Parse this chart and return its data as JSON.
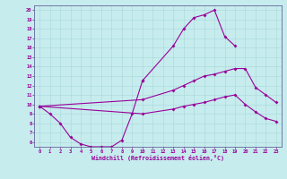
{
  "bg_color": "#c6ecee",
  "line_color": "#990099",
  "grid_color": "#a8d8da",
  "xlabel": "Windchill (Refroidissement éolien,°C)",
  "xmin": -0.5,
  "xmax": 23.5,
  "ymin": 5.5,
  "ymax": 20.5,
  "yticks": [
    6,
    7,
    8,
    9,
    10,
    11,
    12,
    13,
    14,
    15,
    16,
    17,
    18,
    19,
    20
  ],
  "xticks": [
    0,
    1,
    2,
    3,
    4,
    5,
    6,
    7,
    8,
    9,
    10,
    11,
    12,
    13,
    14,
    15,
    16,
    17,
    18,
    19,
    20,
    21,
    22,
    23
  ],
  "curves": [
    {
      "x": [
        0,
        1,
        2,
        3,
        4,
        5,
        6,
        7,
        8,
        9,
        10
      ],
      "y": [
        9.8,
        9.0,
        8.0,
        6.5,
        5.8,
        5.5,
        5.5,
        5.5,
        6.2,
        9.0,
        12.5
      ]
    },
    {
      "x": [
        10,
        13,
        14,
        15,
        16,
        17,
        18,
        19
      ],
      "y": [
        12.5,
        16.2,
        18.0,
        19.2,
        19.5,
        20.0,
        17.2,
        16.2
      ]
    },
    {
      "x": [
        0,
        10,
        13,
        14,
        15,
        16,
        17,
        18,
        19,
        20,
        21,
        22,
        23
      ],
      "y": [
        9.8,
        10.5,
        11.5,
        12.0,
        12.5,
        13.0,
        13.2,
        13.5,
        13.8,
        13.8,
        11.8,
        11.0,
        10.2
      ]
    },
    {
      "x": [
        0,
        10,
        13,
        14,
        15,
        16,
        17,
        18,
        19,
        20,
        21,
        22,
        23
      ],
      "y": [
        9.8,
        9.0,
        9.5,
        9.8,
        10.0,
        10.2,
        10.5,
        10.8,
        11.0,
        10.0,
        9.2,
        8.5,
        8.2
      ]
    }
  ]
}
